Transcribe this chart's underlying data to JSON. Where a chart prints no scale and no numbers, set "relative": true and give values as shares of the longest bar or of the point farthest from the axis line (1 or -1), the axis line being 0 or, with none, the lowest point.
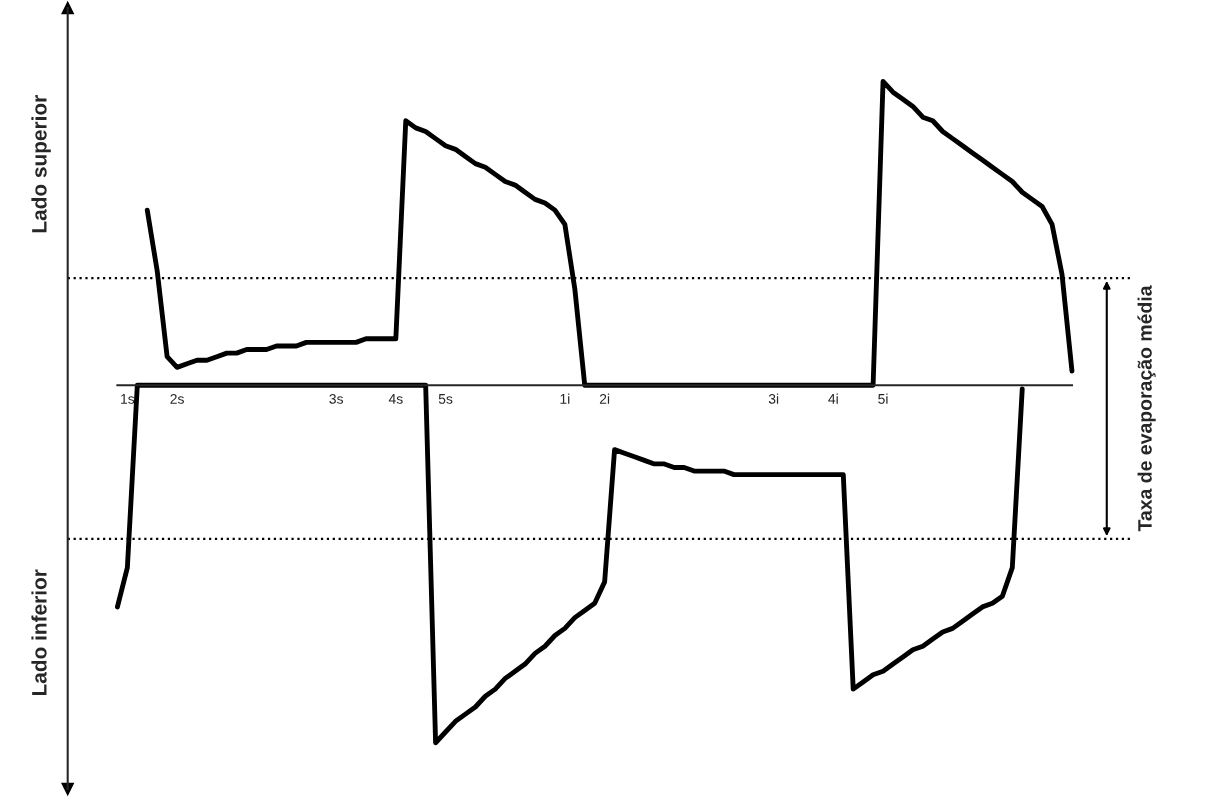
{
  "chart_data": {
    "type": "line",
    "relative": true,
    "legend": false,
    "grid": false,
    "marker": "none",
    "line_style": "solid",
    "categories": [
      null,
      "1s",
      null,
      null,
      null,
      null,
      "2s",
      null,
      null,
      null,
      null,
      null,
      null,
      null,
      null,
      null,
      null,
      null,
      null,
      null,
      null,
      null,
      "3s",
      null,
      null,
      null,
      null,
      null,
      "4s",
      null,
      null,
      null,
      null,
      "5s",
      null,
      null,
      null,
      null,
      null,
      null,
      null,
      null,
      null,
      null,
      null,
      "1i",
      null,
      null,
      null,
      "2i",
      null,
      null,
      null,
      null,
      null,
      null,
      null,
      null,
      null,
      null,
      null,
      null,
      null,
      null,
      null,
      null,
      "3i",
      null,
      null,
      null,
      null,
      null,
      "4i",
      null,
      null,
      null,
      null,
      "5i",
      null,
      null,
      null,
      null,
      null,
      null,
      null,
      null,
      null,
      null,
      null,
      null,
      null,
      null,
      null,
      null,
      null,
      null,
      null
    ],
    "series": [
      {
        "color": "#000000",
        "values": [
          null,
          null,
          null,
          0.49,
          0.32,
          0.08,
          0.05,
          0.06,
          0.07,
          0.07,
          0.08,
          0.09,
          0.09,
          0.1,
          0.1,
          0.1,
          0.11,
          0.11,
          0.11,
          0.12,
          0.12,
          0.12,
          0.12,
          0.12,
          0.12,
          0.13,
          0.13,
          0.13,
          0.13,
          0.74,
          0.72,
          0.71,
          0.69,
          0.67,
          0.66,
          0.64,
          0.62,
          0.61,
          0.59,
          0.57,
          0.56,
          0.54,
          0.52,
          0.51,
          0.49,
          0.45,
          0.27,
          0,
          0,
          0,
          0,
          0,
          0,
          0,
          0,
          0,
          0,
          0,
          0,
          0,
          0,
          0,
          0,
          0,
          0,
          0,
          0,
          0,
          0,
          0,
          0,
          0,
          0,
          0,
          0,
          0,
          0,
          0.85,
          0.82,
          0.8,
          0.78,
          0.75,
          0.74,
          0.71,
          0.69,
          0.67,
          0.65,
          0.63,
          0.61,
          0.59,
          0.57,
          0.54,
          0.52,
          0.5,
          0.45,
          0.31,
          0.04
        ]
      },
      {
        "color": "#000000",
        "values": [
          -0.62,
          -0.51,
          0,
          0,
          0,
          0,
          0,
          0,
          0,
          0,
          0,
          0,
          0,
          0,
          0,
          0,
          0,
          0,
          0,
          0,
          0,
          0,
          0,
          0,
          0,
          0,
          0,
          0,
          0,
          0,
          0,
          0,
          -1,
          -0.97,
          -0.94,
          -0.92,
          -0.9,
          -0.87,
          -0.85,
          -0.82,
          -0.8,
          -0.78,
          -0.75,
          -0.73,
          -0.7,
          -0.68,
          -0.65,
          -0.63,
          -0.61,
          -0.55,
          -0.18,
          -0.19,
          -0.2,
          -0.21,
          -0.22,
          -0.22,
          -0.23,
          -0.23,
          -0.24,
          -0.24,
          -0.24,
          -0.24,
          -0.25,
          -0.25,
          -0.25,
          -0.25,
          -0.25,
          -0.25,
          -0.25,
          -0.25,
          -0.25,
          -0.25,
          -0.25,
          -0.25,
          -0.85,
          -0.83,
          -0.81,
          -0.8,
          -0.78,
          -0.76,
          -0.74,
          -0.73,
          -0.71,
          -0.69,
          -0.68,
          -0.66,
          -0.64,
          -0.62,
          -0.61,
          -0.59,
          -0.51,
          -0.01,
          null,
          null,
          null,
          null,
          null
        ]
      }
    ],
    "ref_lines": [
      {
        "axis": "y",
        "value": 0.3,
        "color": "#000000",
        "line_style": "dotted"
      },
      {
        "axis": "y",
        "value": -0.43,
        "color": "#000000",
        "line_style": "dotted"
      }
    ],
    "annotations": [
      "Lado superior",
      "Lado inferior",
      "Taxa de evaporação média"
    ]
  }
}
